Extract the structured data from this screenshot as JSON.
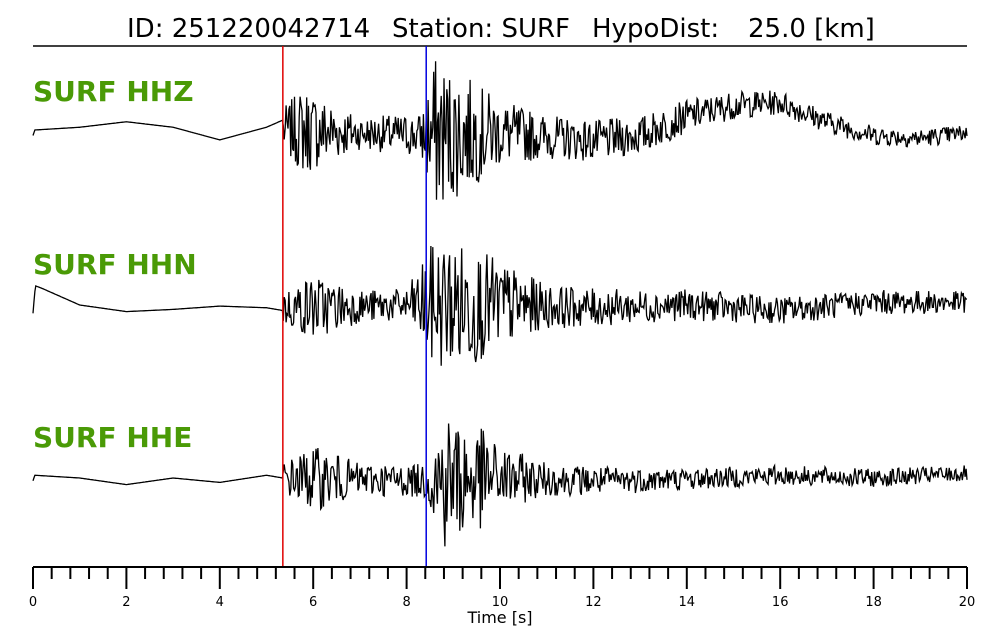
{
  "header": {
    "id_text": "ID: 251220042714",
    "station_text": "Station: SURF",
    "hypodist_label": "HypoDist:",
    "hypodist_value": "25.0 [km]"
  },
  "chart_data": {
    "type": "line",
    "title": "",
    "xlabel": "Time [s]",
    "ylabel": "",
    "xlim": [
      0,
      20
    ],
    "x_ticks": [
      0,
      2,
      4,
      6,
      8,
      10,
      12,
      14,
      16,
      18,
      20
    ],
    "x_tick_labels": [
      "0",
      "2",
      "4",
      "6",
      "8",
      "10",
      "12",
      "14",
      "16",
      "18",
      "20"
    ],
    "minor_tick_step": 0.4,
    "grid": false,
    "label_color": "#4a9a06",
    "p_pick": {
      "time": 5.35,
      "color": "#e00000"
    },
    "s_pick": {
      "time": 8.42,
      "color": "#0000e0"
    },
    "series": [
      {
        "name": "SURF HHZ",
        "pre_event_shape": [
          [
            0.0,
            -0.1
          ],
          [
            0.04,
            0.0
          ],
          [
            1.0,
            0.05
          ],
          [
            2.0,
            0.15
          ],
          [
            3.0,
            0.05
          ],
          [
            4.0,
            -0.18
          ],
          [
            5.0,
            0.05
          ],
          [
            5.35,
            0.18
          ]
        ],
        "post_event_baseline": [
          [
            5.35,
            0.0
          ],
          [
            8.4,
            -0.1
          ],
          [
            10.0,
            -0.05
          ],
          [
            12.0,
            -0.2
          ],
          [
            13.0,
            -0.1
          ],
          [
            14.0,
            0.25
          ],
          [
            15.0,
            0.45
          ],
          [
            16.0,
            0.5
          ],
          [
            17.0,
            0.15
          ],
          [
            18.0,
            -0.1
          ],
          [
            19.0,
            -0.15
          ],
          [
            20.0,
            -0.05
          ]
        ],
        "envelope": [
          [
            5.35,
            0.4
          ],
          [
            5.8,
            0.8
          ],
          [
            6.3,
            0.6
          ],
          [
            7.0,
            0.3
          ],
          [
            8.3,
            0.4
          ],
          [
            8.6,
            1.4
          ],
          [
            9.2,
            1.1
          ],
          [
            10.0,
            0.6
          ],
          [
            11.0,
            0.4
          ],
          [
            13.0,
            0.35
          ],
          [
            15.0,
            0.25
          ],
          [
            17.0,
            0.2
          ],
          [
            20.0,
            0.15
          ]
        ]
      },
      {
        "name": "SURF HHN",
        "pre_event_shape": [
          [
            0.0,
            -0.15
          ],
          [
            0.05,
            0.35
          ],
          [
            0.2,
            0.3
          ],
          [
            1.0,
            0.0
          ],
          [
            2.0,
            -0.12
          ],
          [
            3.0,
            -0.08
          ],
          [
            4.0,
            -0.02
          ],
          [
            5.0,
            -0.05
          ],
          [
            5.35,
            -0.1
          ]
        ],
        "post_event_baseline": [
          [
            5.35,
            -0.05
          ],
          [
            8.4,
            0.0
          ],
          [
            10.0,
            0.0
          ],
          [
            12.0,
            -0.05
          ],
          [
            14.0,
            0.0
          ],
          [
            16.0,
            -0.1
          ],
          [
            18.0,
            0.05
          ],
          [
            20.0,
            0.05
          ]
        ],
        "envelope": [
          [
            5.35,
            0.3
          ],
          [
            6.0,
            0.6
          ],
          [
            7.0,
            0.3
          ],
          [
            8.0,
            0.3
          ],
          [
            8.6,
            1.2
          ],
          [
            9.4,
            1.1
          ],
          [
            10.0,
            0.8
          ],
          [
            11.0,
            0.4
          ],
          [
            13.0,
            0.3
          ],
          [
            16.0,
            0.25
          ],
          [
            20.0,
            0.2
          ]
        ]
      },
      {
        "name": "SURF HHE",
        "pre_event_shape": [
          [
            0.0,
            -0.05
          ],
          [
            0.04,
            0.05
          ],
          [
            1.0,
            0.0
          ],
          [
            2.0,
            -0.12
          ],
          [
            3.0,
            0.0
          ],
          [
            4.0,
            -0.08
          ],
          [
            5.0,
            0.05
          ],
          [
            5.35,
            0.0
          ]
        ],
        "post_event_baseline": [
          [
            5.35,
            0.0
          ],
          [
            8.4,
            -0.05
          ],
          [
            10.0,
            0.0
          ],
          [
            12.0,
            -0.05
          ],
          [
            14.0,
            -0.02
          ],
          [
            16.0,
            0.05
          ],
          [
            18.0,
            0.0
          ],
          [
            20.0,
            0.08
          ]
        ],
        "envelope": [
          [
            5.35,
            0.3
          ],
          [
            6.0,
            0.6
          ],
          [
            7.0,
            0.3
          ],
          [
            8.4,
            0.3
          ],
          [
            8.8,
            1.3
          ],
          [
            9.5,
            1.0
          ],
          [
            10.0,
            0.6
          ],
          [
            11.0,
            0.3
          ],
          [
            14.0,
            0.2
          ],
          [
            20.0,
            0.15
          ]
        ]
      }
    ]
  }
}
